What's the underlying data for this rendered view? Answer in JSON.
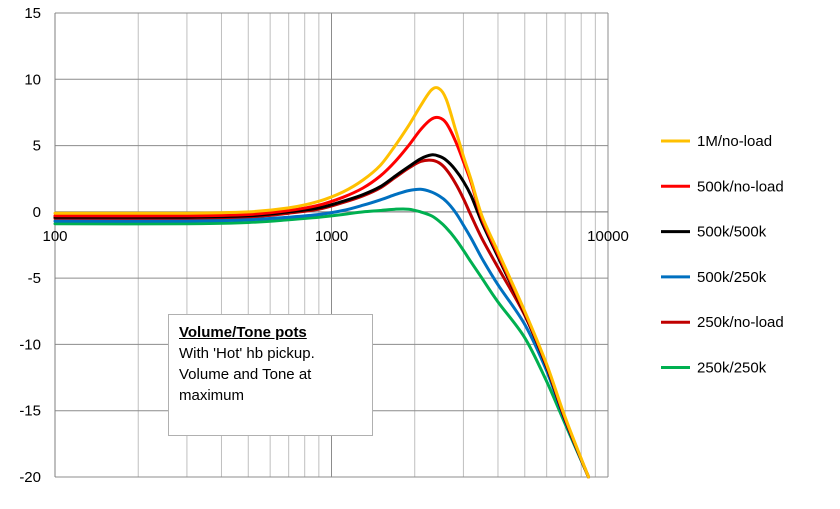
{
  "chart_data": {
    "type": "line",
    "title": "",
    "xlabel": "",
    "ylabel": "",
    "x_scale": "log",
    "xlim": [
      100,
      10000
    ],
    "ylim": [
      -20,
      15
    ],
    "x_tick_labels": [
      "100",
      "1000",
      "10000"
    ],
    "y_tick_labels": [
      "15",
      "10",
      "5",
      "0",
      "-5",
      "-10",
      "-15",
      "-20"
    ],
    "grid": true,
    "legend_position": "right",
    "x": [
      100,
      300,
      500,
      700,
      900,
      1100,
      1300,
      1500,
      1700,
      1900,
      2100,
      2300,
      2450,
      2600,
      2800,
      3000,
      3200,
      3500,
      4000,
      5000,
      6000,
      7000,
      8500
    ],
    "series": [
      {
        "name": "1M/no-load",
        "color": "#FFC000",
        "values": [
          -0.1,
          -0.1,
          0.0,
          0.3,
          0.8,
          1.5,
          2.4,
          3.5,
          5.0,
          6.5,
          8.0,
          9.2,
          9.3,
          8.5,
          6.3,
          4.2,
          2.4,
          -0.3,
          -3.0,
          -7.5,
          -11.5,
          -15.5,
          -20
        ]
      },
      {
        "name": "500k/no-load",
        "color": "#FF0000",
        "values": [
          -0.3,
          -0.3,
          -0.2,
          0.1,
          0.5,
          1.1,
          1.8,
          2.7,
          3.8,
          5.0,
          6.2,
          7.0,
          7.1,
          6.7,
          5.4,
          3.8,
          2.2,
          -0.5,
          -3.2,
          -7.6,
          -11.6,
          -15.6,
          -20
        ]
      },
      {
        "name": "500k/500k",
        "color": "#000000",
        "values": [
          -0.4,
          -0.4,
          -0.3,
          0.0,
          0.3,
          0.8,
          1.3,
          1.9,
          2.7,
          3.4,
          4.0,
          4.3,
          4.2,
          3.9,
          3.2,
          2.3,
          1.2,
          -0.8,
          -3.4,
          -7.7,
          -11.7,
          -15.7,
          -20
        ]
      },
      {
        "name": "500k/250k",
        "color": "#0070C0",
        "values": [
          -0.7,
          -0.7,
          -0.6,
          -0.4,
          -0.2,
          0.1,
          0.5,
          0.9,
          1.3,
          1.6,
          1.7,
          1.5,
          1.2,
          0.8,
          0.0,
          -1.0,
          -2.0,
          -3.5,
          -5.5,
          -8.5,
          -12.0,
          -15.8,
          -20
        ]
      },
      {
        "name": "250k/no-load",
        "color": "#C00000",
        "values": [
          -0.5,
          -0.5,
          -0.4,
          -0.1,
          0.2,
          0.7,
          1.2,
          1.8,
          2.6,
          3.3,
          3.8,
          3.9,
          3.7,
          3.2,
          2.2,
          1.0,
          -0.3,
          -2.0,
          -4.2,
          -7.8,
          -11.7,
          -15.7,
          -20
        ]
      },
      {
        "name": "250k/250k",
        "color": "#00B050",
        "values": [
          -0.9,
          -0.9,
          -0.8,
          -0.6,
          -0.4,
          -0.2,
          0.0,
          0.1,
          0.2,
          0.2,
          0.0,
          -0.3,
          -0.7,
          -1.2,
          -2.0,
          -2.9,
          -3.8,
          -5.0,
          -6.8,
          -9.5,
          -12.8,
          -16.0,
          -20
        ]
      }
    ]
  },
  "annotation": {
    "title": "Volume/Tone pots",
    "text": "With 'Hot' hb pickup. Volume and Tone at maximum"
  }
}
